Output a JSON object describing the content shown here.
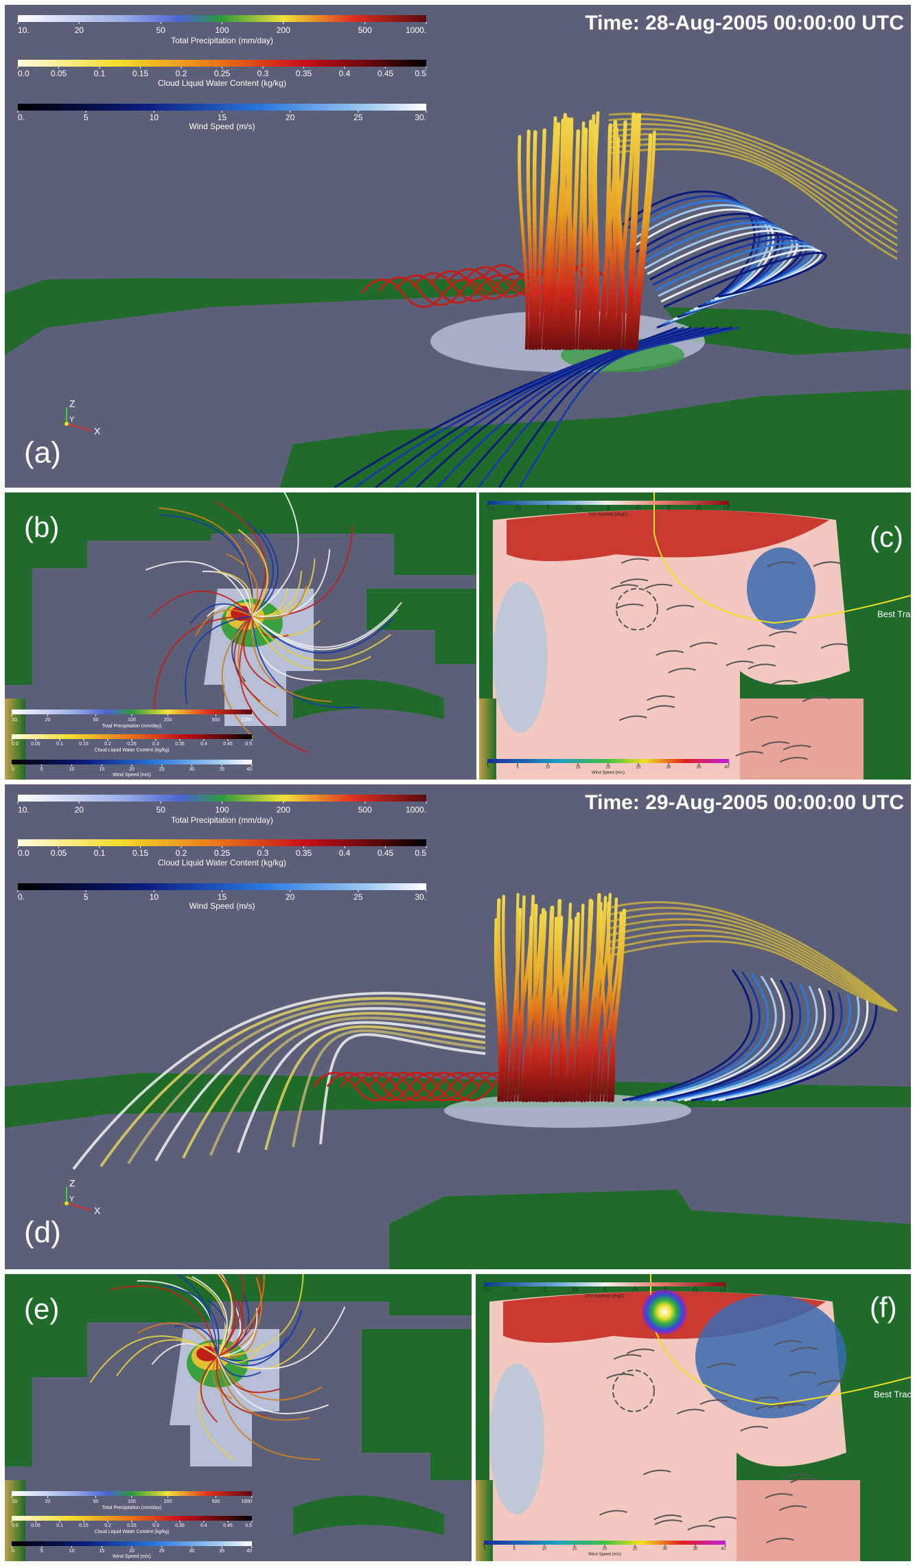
{
  "panels": [
    {
      "label": "(a)",
      "time": "Time: 28-Aug-2005 00:00:00 UTC",
      "colorbars": [
        {
          "title": "Total Precipitation (mm/day)",
          "ticks": [
            "10.",
            "20",
            "50",
            "100",
            "200",
            "500",
            "1000."
          ]
        },
        {
          "title": "Cloud Liquid Water Content (kg/kg)",
          "ticks": [
            "0.0",
            "0.05",
            "0.1",
            "0.15",
            "0.2",
            "0.25",
            "0.3",
            "0.35",
            "0.4",
            "0.45",
            "0.5"
          ]
        },
        {
          "title": "Wind Speed (m/s)",
          "ticks": [
            "0.",
            "5",
            "10",
            "15",
            "20",
            "25",
            "30."
          ]
        }
      ],
      "axes": [
        "Z",
        "Y",
        "X"
      ]
    },
    {
      "label": "(b)",
      "colorbars": [
        {
          "title": "Total Precipitation (mm/day)",
          "ticks": [
            "10.",
            "20",
            "50",
            "100",
            "200",
            "500",
            "1000"
          ]
        },
        {
          "title": "Cloud Liquid Water Content (kg/kg)",
          "ticks": [
            "0.0",
            "0.05",
            "0.1",
            "0.15",
            "0.2",
            "0.25",
            "0.3",
            "0.35",
            "0.4",
            "0.45",
            "0.5"
          ]
        },
        {
          "title": "Wind Speed (m/s)",
          "ticks": [
            "0",
            "5",
            "10",
            "15",
            "20",
            "25",
            "30",
            "35",
            "40"
          ]
        }
      ]
    },
    {
      "label": "(c)",
      "annotation": "Best Track",
      "colorbars": [
        {
          "title": "SST Anomaly (degC)",
          "ticks": [
            "-2.0",
            "-1.5",
            "-1",
            "-0.5",
            "0",
            "0.5",
            "1",
            "1.5",
            "2.0"
          ]
        },
        {
          "title": "Wind Speed (m/s)",
          "ticks": [
            "0",
            "5",
            "10",
            "15",
            "20",
            "25",
            "30",
            "35",
            "40"
          ]
        }
      ]
    },
    {
      "label": "(d)",
      "time": "Time: 29-Aug-2005 00:00:00 UTC",
      "colorbars": [
        {
          "title": "Total Precipitation (mm/day)",
          "ticks": [
            "10.",
            "20",
            "50",
            "100",
            "200",
            "500",
            "1000."
          ]
        },
        {
          "title": "Cloud Liquid Water Content (kg/kg)",
          "ticks": [
            "0.0",
            "0.05",
            "0.1",
            "0.15",
            "0.2",
            "0.25",
            "0.3",
            "0.35",
            "0.4",
            "0.45",
            "0.5"
          ]
        },
        {
          "title": "Wind Speed (m/s)",
          "ticks": [
            "0.",
            "5",
            "10",
            "15",
            "20",
            "25",
            "30."
          ]
        }
      ],
      "axes": [
        "Z",
        "Y",
        "X"
      ]
    },
    {
      "label": "(e)",
      "colorbars": [
        {
          "title": "Total Precipitation (mm/day)",
          "ticks": [
            "10.",
            "20",
            "50",
            "100",
            "200",
            "500",
            "1000"
          ]
        },
        {
          "title": "Cloud Liquid Water Content (kg/kg)",
          "ticks": [
            "0.0",
            "0.05",
            "0.1",
            "0.15",
            "0.2",
            "0.25",
            "0.3",
            "0.35",
            "0.4",
            "0.45",
            "0.5"
          ]
        },
        {
          "title": "Wind Speed (m/s)",
          "ticks": [
            "0",
            "5",
            "10",
            "15",
            "20",
            "25",
            "30",
            "35",
            "40"
          ]
        }
      ]
    },
    {
      "label": "(f)",
      "annotation": "Best Track",
      "colorbars": [
        {
          "title": "SST Anomaly (degC)",
          "ticks": [
            "-2.0",
            "-1.5",
            "-1",
            "-0.5",
            "0",
            "0.5",
            "1",
            "1.5",
            "2.0"
          ]
        },
        {
          "title": "Wind Speed (m/s)",
          "ticks": [
            "0",
            "5",
            "10",
            "15",
            "20",
            "25",
            "30",
            "35",
            "40"
          ]
        }
      ]
    }
  ]
}
